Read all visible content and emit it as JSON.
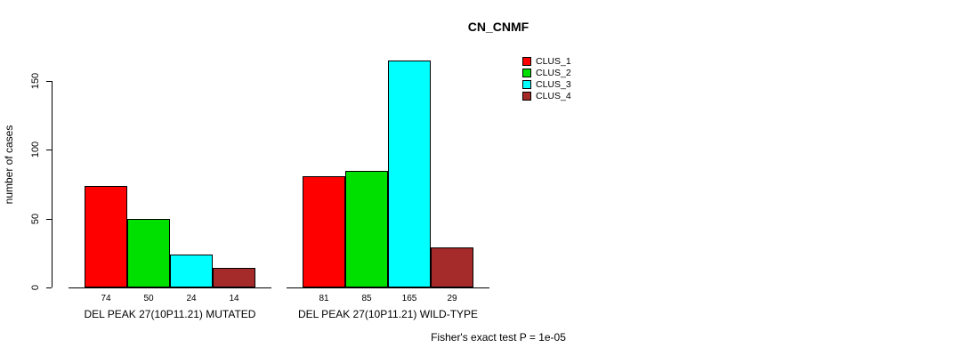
{
  "chart_data": {
    "type": "bar",
    "title": "CN_CNMF",
    "ylabel": "number of cases",
    "annotation": "Fisher's exact test P = 1e-05",
    "groups": [
      "DEL PEAK 27(10P11.21) MUTATED",
      "DEL PEAK 27(10P11.21) WILD-TYPE"
    ],
    "series": [
      {
        "name": "CLUS_1",
        "color": "#ff0000",
        "values": [
          74,
          81
        ]
      },
      {
        "name": "CLUS_2",
        "color": "#00e000",
        "values": [
          50,
          85
        ]
      },
      {
        "name": "CLUS_3",
        "color": "#00ffff",
        "values": [
          24,
          165
        ]
      },
      {
        "name": "CLUS_4",
        "color": "#a52a2a",
        "values": [
          14,
          29
        ]
      }
    ],
    "yticks": [
      0,
      50,
      100,
      150
    ],
    "ylim": [
      0,
      170
    ],
    "grid": false,
    "legend_position": "top-right"
  }
}
